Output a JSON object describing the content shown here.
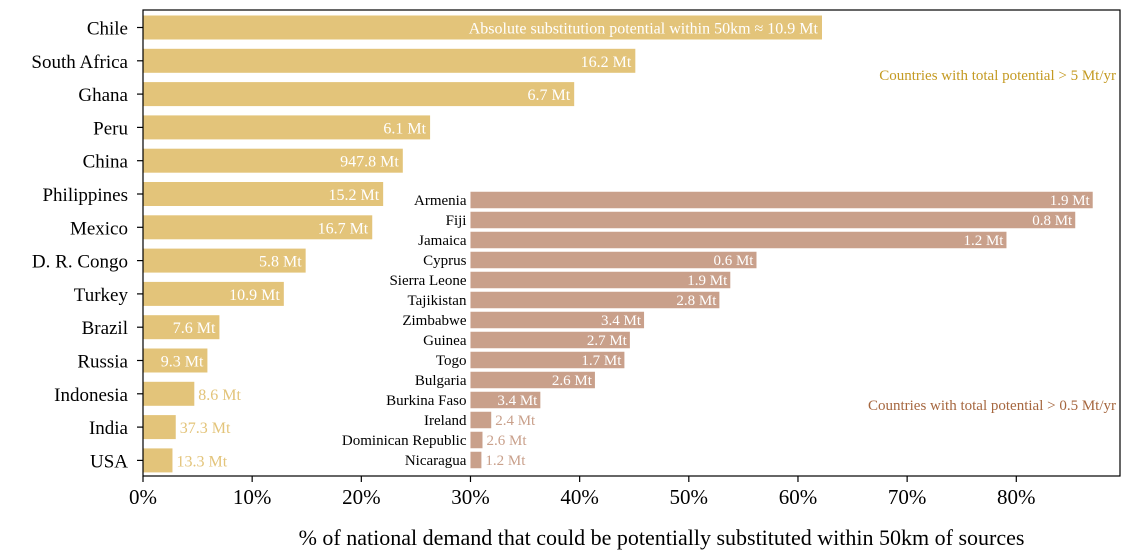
{
  "chart_data": {
    "type": "bar",
    "orientation": "horizontal",
    "xlabel": "% of national demand that could be potentially substituted within 50km of sources",
    "x_ticks": [
      "0%",
      "10%",
      "20%",
      "30%",
      "40%",
      "50%",
      "60%",
      "70%",
      "80%"
    ],
    "xlim": [
      0,
      89.5
    ],
    "grid": false,
    "colors": {
      "main": "#e3c47a",
      "inset": "#c9a08b",
      "main_text": "#c49a22",
      "inset_text": "#a6673f"
    },
    "main_series": {
      "label": "Countries with total potential > 5 Mt/yr",
      "categories": [
        "Chile",
        "South Africa",
        "Ghana",
        "Peru",
        "China",
        "Philippines",
        "Mexico",
        "D. R. Congo",
        "Turkey",
        "Brazil",
        "Russia",
        "Indonesia",
        "India",
        "USA"
      ],
      "values": [
        62.2,
        45.1,
        39.5,
        26.3,
        23.8,
        22.0,
        21.0,
        14.9,
        12.9,
        7.0,
        5.9,
        4.7,
        3.0,
        2.7
      ],
      "data_labels": [
        "Absolute substitution potential within 50km  ≈ 10.9 Mt",
        "16.2 Mt",
        "6.7 Mt",
        "6.1 Mt",
        "947.8 Mt",
        "15.2 Mt",
        "16.7 Mt",
        "5.8 Mt",
        "10.9 Mt",
        "7.6 Mt",
        "9.3 Mt",
        "8.6 Mt",
        "37.3 Mt",
        "13.3 Mt"
      ]
    },
    "inset_series": {
      "label": "Countries with total potential > 0.5 Mt/yr",
      "categories": [
        "Armenia",
        "Fiji",
        "Jamaica",
        "Cyprus",
        "Sierra Leone",
        "Tajikistan",
        "Zimbabwe",
        "Guinea",
        "Togo",
        "Bulgaria",
        "Burkina Faso",
        "Ireland",
        "Dominican Republic",
        "Nicaragua"
      ],
      "values": [
        87.0,
        85.4,
        79.1,
        56.2,
        53.8,
        52.8,
        45.9,
        44.6,
        44.1,
        41.4,
        36.4,
        31.9,
        31.1,
        31.0
      ],
      "data_labels": [
        "1.9 Mt",
        "0.8 Mt",
        "1.2 Mt",
        "0.6 Mt",
        "1.9 Mt",
        "2.8 Mt",
        "3.4 Mt",
        "2.7 Mt",
        "1.7 Mt",
        "2.6 Mt",
        "3.4 Mt",
        "2.4 Mt",
        "2.6 Mt",
        "1.2 Mt"
      ]
    }
  }
}
